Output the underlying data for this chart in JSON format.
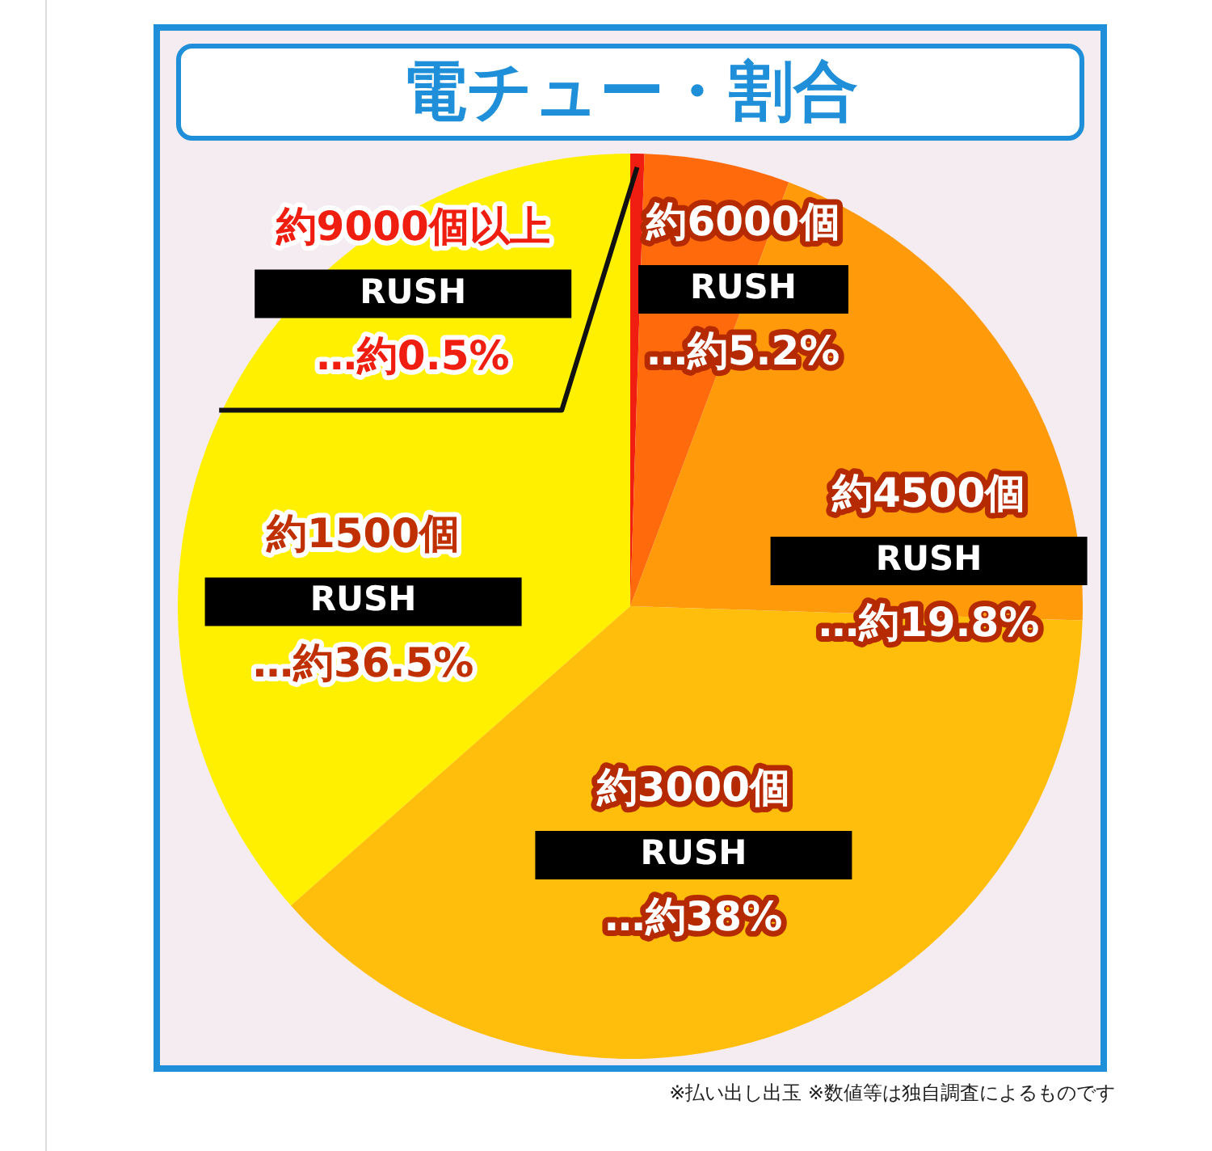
{
  "chart_data": {
    "type": "pie",
    "title": "電チュー・割合",
    "categories": [
      "約9000個以上\nRUSH",
      "約6000個\nRUSH",
      "約4500個\nRUSH",
      "約3000個\nRUSH",
      "約1500個\nRUSH"
    ],
    "values": [
      0.5,
      5.2,
      19.8,
      38,
      36.5
    ],
    "value_labels": [
      "…約0.5%",
      "…約5.2%",
      "…約19.8%",
      "…約38%",
      "…約36.5%"
    ],
    "colors": [
      "#f01e10",
      "#ff6a0c",
      "#ff9a0a",
      "#ffbe0c",
      "#fff000"
    ],
    "legend": false,
    "annotations": [
      "※払い出し出玉 ※数値等は独自調査によるものです"
    ]
  }
}
